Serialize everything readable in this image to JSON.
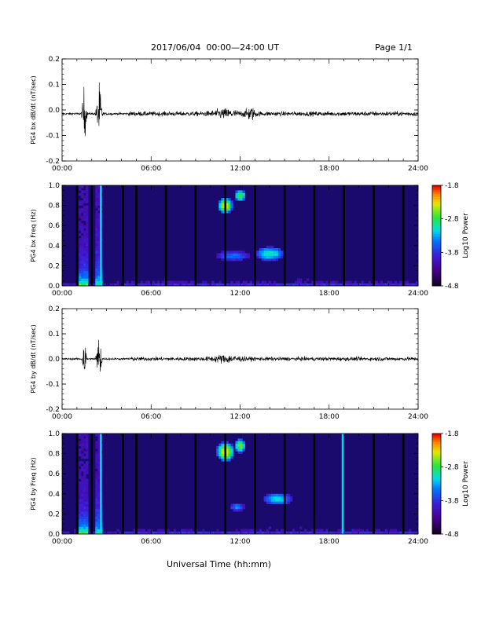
{
  "header": {
    "title": "2017/06/04  00:00—24:00 UT",
    "page": "Page 1/1"
  },
  "x_axis_label": "Universal Time (hh:mm)",
  "colors": {
    "trace": "#000000",
    "spectrogram_background": "#1a0a6e"
  },
  "chart_data": [
    {
      "type": "line",
      "id": "bx_dbdt",
      "ylabel": "PG4 bx dB/dt (nT/sec)",
      "xlim": [
        0,
        24
      ],
      "ylim": [
        -0.2,
        0.2
      ],
      "yticks": [
        "0.2",
        "0.1",
        "0.0",
        "-0.1",
        "-0.2"
      ],
      "xticks": [
        "00:00",
        "06:00",
        "12:00",
        "18:00",
        "24:00"
      ],
      "baseline": -0.015,
      "bursts": [
        {
          "t": 1.5,
          "width": 0.12,
          "amp": 0.1
        },
        {
          "t": 2.5,
          "width": 0.15,
          "amp": 0.11
        },
        {
          "t": 11.0,
          "width": 0.9,
          "amp": 0.012
        },
        {
          "t": 12.7,
          "width": 0.3,
          "amp": 0.02
        }
      ],
      "noise_level": 0.007
    },
    {
      "type": "heatmap",
      "id": "bx_spectrogram",
      "ylabel": "PG4 bx Freq (Hz)",
      "xlim": [
        0,
        24
      ],
      "ylim": [
        0,
        1.0
      ],
      "yticks": [
        "1.0",
        "0.8",
        "0.6",
        "0.4",
        "0.2",
        "0.0"
      ],
      "xticks": [
        "00:00",
        "06:00",
        "12:00",
        "18:00",
        "24:00"
      ],
      "colorbar": {
        "label": "Log10 Power",
        "range": [
          -4.8,
          -1.8
        ],
        "ticks": [
          "-1.8",
          "-2.8",
          "-3.8",
          "-4.8"
        ]
      },
      "data_gaps_hours": [
        1.0,
        2.0,
        4.1,
        5.0,
        7.0,
        9.0,
        11.0,
        13.0,
        15.0,
        17.0,
        19.0,
        21.0,
        23.0
      ],
      "bright_columns_hours": [
        2.6
      ],
      "features": [
        {
          "t": 11.0,
          "f": 0.8,
          "dt": 0.5,
          "df": 0.08,
          "level": -2.3
        },
        {
          "t": 12.0,
          "f": 0.9,
          "dt": 0.4,
          "df": 0.06,
          "level": -2.7
        },
        {
          "t": 14.0,
          "f": 0.32,
          "dt": 1.0,
          "df": 0.07,
          "level": -3.0
        },
        {
          "t": 11.5,
          "f": 0.3,
          "dt": 1.2,
          "df": 0.05,
          "level": -3.5
        }
      ]
    },
    {
      "type": "line",
      "id": "by_dbdt",
      "ylabel": "PG4 by dB/dt (nT/sec)",
      "xlim": [
        0,
        24
      ],
      "ylim": [
        -0.2,
        0.2
      ],
      "yticks": [
        "0.2",
        "0.1",
        "0.0",
        "-0.1",
        "-0.2"
      ],
      "xticks": [
        "00:00",
        "06:00",
        "12:00",
        "18:00",
        "24:00"
      ],
      "baseline": 0.0,
      "bursts": [
        {
          "t": 1.5,
          "width": 0.12,
          "amp": 0.08
        },
        {
          "t": 2.5,
          "width": 0.15,
          "amp": 0.09
        },
        {
          "t": 11.0,
          "width": 1.0,
          "amp": 0.01
        }
      ],
      "noise_level": 0.006
    },
    {
      "type": "heatmap",
      "id": "by_spectrogram",
      "ylabel": "PG4 by Freq (Hz)",
      "xlim": [
        0,
        24
      ],
      "ylim": [
        0,
        1.0
      ],
      "yticks": [
        "1.0",
        "0.8",
        "0.6",
        "0.4",
        "0.2",
        "0.0"
      ],
      "xticks": [
        "00:00",
        "06:00",
        "12:00",
        "18:00",
        "24:00"
      ],
      "colorbar": {
        "label": "Log10 Power",
        "range": [
          -4.8,
          -1.8
        ],
        "ticks": [
          "-1.8",
          "-2.8",
          "-3.8",
          "-4.8"
        ]
      },
      "data_gaps_hours": [
        1.0,
        2.0,
        4.1,
        5.0,
        7.0,
        9.0,
        11.0,
        13.0,
        15.0,
        17.0,
        21.0,
        23.0
      ],
      "bright_columns_hours": [
        2.6,
        18.9
      ],
      "features": [
        {
          "t": 11.0,
          "f": 0.82,
          "dt": 0.6,
          "df": 0.1,
          "level": -2.3
        },
        {
          "t": 12.0,
          "f": 0.88,
          "dt": 0.4,
          "df": 0.07,
          "level": -2.6
        },
        {
          "t": 14.5,
          "f": 0.35,
          "dt": 1.0,
          "df": 0.06,
          "level": -3.1
        },
        {
          "t": 11.8,
          "f": 0.27,
          "dt": 0.5,
          "df": 0.04,
          "level": -3.4
        }
      ]
    }
  ]
}
